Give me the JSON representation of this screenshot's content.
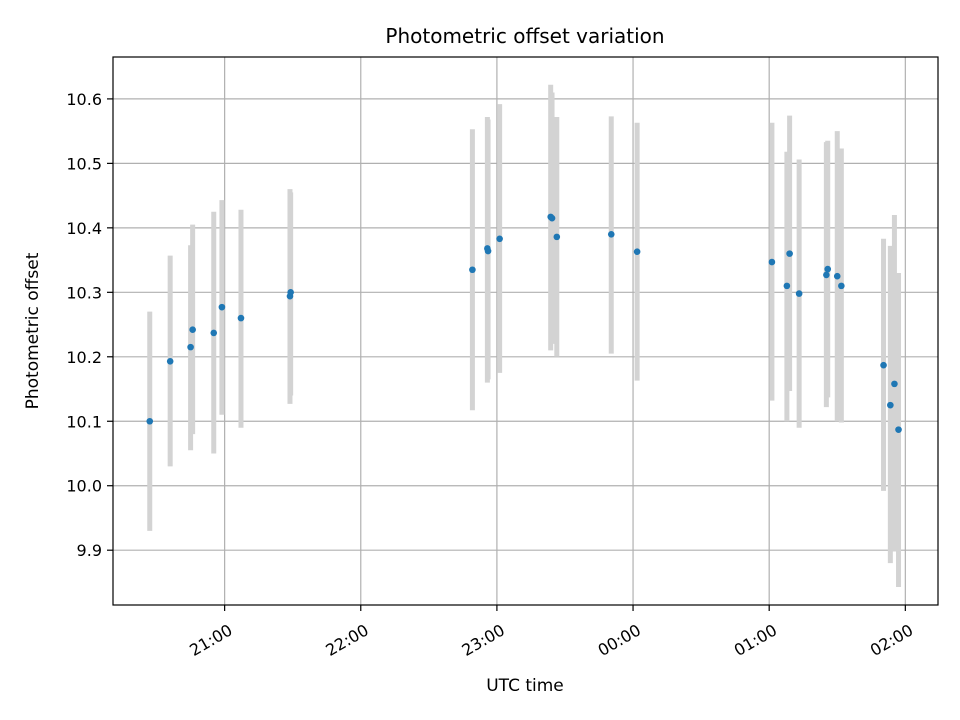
{
  "chart_data": {
    "type": "scatter",
    "title": "Photometric offset variation",
    "xlabel": "UTC time",
    "ylabel": "Photometric offset",
    "x_unit": "hours_since_midnight",
    "xlim": [
      -3.82,
      2.24
    ],
    "ylim": [
      9.815,
      10.665
    ],
    "x_ticks": [
      {
        "value": -3.0,
        "label": "21:00"
      },
      {
        "value": -2.0,
        "label": "22:00"
      },
      {
        "value": -1.0,
        "label": "23:00"
      },
      {
        "value": 0.0,
        "label": "00:00"
      },
      {
        "value": 1.0,
        "label": "01:00"
      },
      {
        "value": 2.0,
        "label": "02:00"
      }
    ],
    "y_ticks": [
      {
        "value": 9.9,
        "label": "9.9"
      },
      {
        "value": 10.0,
        "label": "10.0"
      },
      {
        "value": 10.1,
        "label": "10.1"
      },
      {
        "value": 10.2,
        "label": "10.2"
      },
      {
        "value": 10.3,
        "label": "10.3"
      },
      {
        "value": 10.4,
        "label": "10.4"
      },
      {
        "value": 10.5,
        "label": "10.5"
      },
      {
        "value": 10.6,
        "label": "10.6"
      }
    ],
    "grid": true,
    "point_color": "#1f77b4",
    "errorbar_color": "#d3d3d3",
    "points": [
      {
        "x": -3.55,
        "y": 10.1,
        "lo": 9.93,
        "hi": 10.27
      },
      {
        "x": -3.4,
        "y": 10.193,
        "lo": 10.03,
        "hi": 10.357
      },
      {
        "x": -3.25,
        "y": 10.215,
        "lo": 10.055,
        "hi": 10.373
      },
      {
        "x": -3.235,
        "y": 10.242,
        "lo": 10.08,
        "hi": 10.405
      },
      {
        "x": -3.08,
        "y": 10.237,
        "lo": 10.05,
        "hi": 10.425
      },
      {
        "x": -3.02,
        "y": 10.277,
        "lo": 10.11,
        "hi": 10.443
      },
      {
        "x": -2.88,
        "y": 10.26,
        "lo": 10.09,
        "hi": 10.428
      },
      {
        "x": -2.52,
        "y": 10.294,
        "lo": 10.127,
        "hi": 10.46
      },
      {
        "x": -2.515,
        "y": 10.3,
        "lo": 10.14,
        "hi": 10.455
      },
      {
        "x": -1.18,
        "y": 10.335,
        "lo": 10.117,
        "hi": 10.553
      },
      {
        "x": -1.07,
        "y": 10.368,
        "lo": 10.16,
        "hi": 10.572
      },
      {
        "x": -1.065,
        "y": 10.364,
        "lo": 10.165,
        "hi": 10.568
      },
      {
        "x": -0.98,
        "y": 10.383,
        "lo": 10.175,
        "hi": 10.592
      },
      {
        "x": -0.605,
        "y": 10.417,
        "lo": 10.21,
        "hi": 10.622
      },
      {
        "x": -0.595,
        "y": 10.415,
        "lo": 10.22,
        "hi": 10.61
      },
      {
        "x": -0.56,
        "y": 10.386,
        "lo": 10.2,
        "hi": 10.572
      },
      {
        "x": -0.16,
        "y": 10.39,
        "lo": 10.205,
        "hi": 10.573
      },
      {
        "x": 0.03,
        "y": 10.363,
        "lo": 10.163,
        "hi": 10.563
      },
      {
        "x": 1.02,
        "y": 10.347,
        "lo": 10.132,
        "hi": 10.563
      },
      {
        "x": 1.13,
        "y": 10.31,
        "lo": 10.1,
        "hi": 10.518
      },
      {
        "x": 1.15,
        "y": 10.36,
        "lo": 10.147,
        "hi": 10.574
      },
      {
        "x": 1.22,
        "y": 10.298,
        "lo": 10.09,
        "hi": 10.506
      },
      {
        "x": 1.42,
        "y": 10.327,
        "lo": 10.122,
        "hi": 10.533
      },
      {
        "x": 1.43,
        "y": 10.336,
        "lo": 10.137,
        "hi": 10.535
      },
      {
        "x": 1.5,
        "y": 10.325,
        "lo": 10.1,
        "hi": 10.55
      },
      {
        "x": 1.53,
        "y": 10.31,
        "lo": 10.098,
        "hi": 10.523
      },
      {
        "x": 1.84,
        "y": 10.187,
        "lo": 9.992,
        "hi": 10.383
      },
      {
        "x": 1.89,
        "y": 10.125,
        "lo": 9.88,
        "hi": 10.372
      },
      {
        "x": 1.92,
        "y": 10.158,
        "lo": 9.898,
        "hi": 10.42
      },
      {
        "x": 1.95,
        "y": 10.087,
        "lo": 9.843,
        "hi": 10.33
      }
    ]
  }
}
